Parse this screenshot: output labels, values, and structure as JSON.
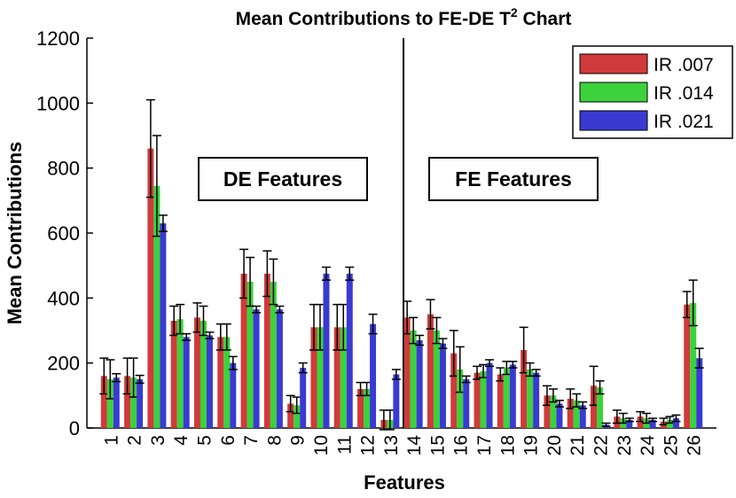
{
  "chart_data": {
    "type": "bar",
    "title": "Mean Contributions to FE-DE T",
    "title_sup": "2",
    "title_end": " Chart",
    "x_label": "Features",
    "y_label": "Mean Contributions",
    "annotations": [
      "DE Features",
      "FE Features"
    ],
    "categories": [
      "1",
      "2",
      "3",
      "4",
      "5",
      "6",
      "7",
      "8",
      "9",
      "10",
      "11",
      "12",
      "13",
      "14",
      "15",
      "16",
      "17",
      "18",
      "19",
      "20",
      "21",
      "22",
      "23",
      "24",
      "25",
      "26"
    ],
    "series": [
      {
        "name": "IR .007",
        "color": "#d03a3a",
        "values": [
          160,
          160,
          860,
          330,
          340,
          280,
          475,
          475,
          75,
          310,
          310,
          120,
          25,
          340,
          350,
          230,
          170,
          165,
          240,
          100,
          90,
          130,
          35,
          35,
          20,
          380
        ],
        "errors": [
          55,
          55,
          150,
          45,
          45,
          40,
          75,
          70,
          25,
          70,
          70,
          20,
          30,
          50,
          45,
          70,
          20,
          20,
          70,
          30,
          30,
          60,
          20,
          15,
          10,
          40
        ]
      },
      {
        "name": "IR .014",
        "color": "#3bd23b",
        "values": [
          150,
          155,
          745,
          335,
          330,
          280,
          450,
          450,
          70,
          310,
          310,
          120,
          25,
          300,
          300,
          180,
          175,
          185,
          180,
          100,
          85,
          125,
          30,
          30,
          25,
          385
        ],
        "errors": [
          60,
          60,
          155,
          45,
          45,
          40,
          75,
          70,
          25,
          70,
          70,
          20,
          30,
          40,
          40,
          70,
          20,
          20,
          20,
          20,
          20,
          20,
          15,
          15,
          10,
          70
        ]
      },
      {
        "name": "IR .021",
        "color": "#3a3ad2",
        "values": [
          155,
          150,
          630,
          280,
          285,
          200,
          365,
          365,
          185,
          475,
          475,
          320,
          165,
          270,
          260,
          150,
          200,
          195,
          170,
          75,
          70,
          10,
          25,
          25,
          30,
          215
        ],
        "errors": [
          12,
          12,
          25,
          10,
          10,
          20,
          10,
          10,
          15,
          20,
          20,
          30,
          15,
          15,
          15,
          10,
          10,
          10,
          10,
          10,
          10,
          5,
          5,
          5,
          10,
          30
        ]
      }
    ],
    "ylim": [
      0,
      1200
    ],
    "yticks": [
      0,
      200,
      400,
      600,
      800,
      1000,
      1200
    ]
  }
}
